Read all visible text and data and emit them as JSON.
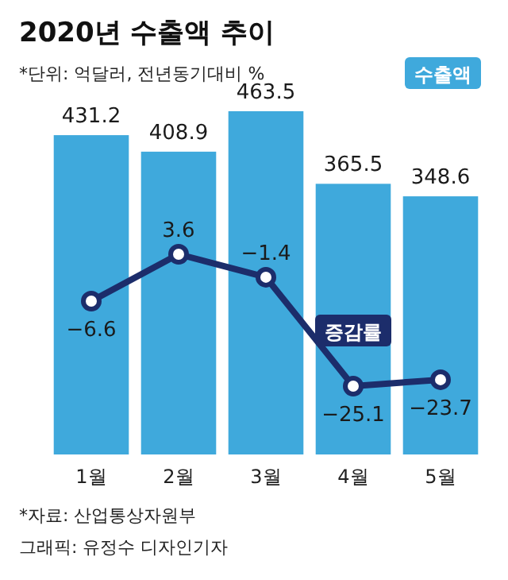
{
  "chart_data": {
    "type": "bar",
    "title": "2020년 수출액 추이",
    "subtitle": "*단위: 억달러, 전년동기대비 %",
    "categories": [
      "1월",
      "2월",
      "3월",
      "4월",
      "5월"
    ],
    "series": [
      {
        "name": "수출액",
        "color": "#3fa9dc",
        "values": [
          431.2,
          408.9,
          463.5,
          365.5,
          348.6
        ]
      },
      {
        "name": "증감률",
        "type": "line",
        "axis": "y2",
        "color": "#1c2d6b",
        "marker": "circle",
        "values": [
          -6.6,
          3.6,
          -1.4,
          -25.1,
          -23.7
        ]
      }
    ],
    "data_labels": true,
    "legend": false,
    "annotations": [
      "*자료: 산업통상자원부",
      "그래픽: 유정수 디자인기자"
    ]
  }
}
